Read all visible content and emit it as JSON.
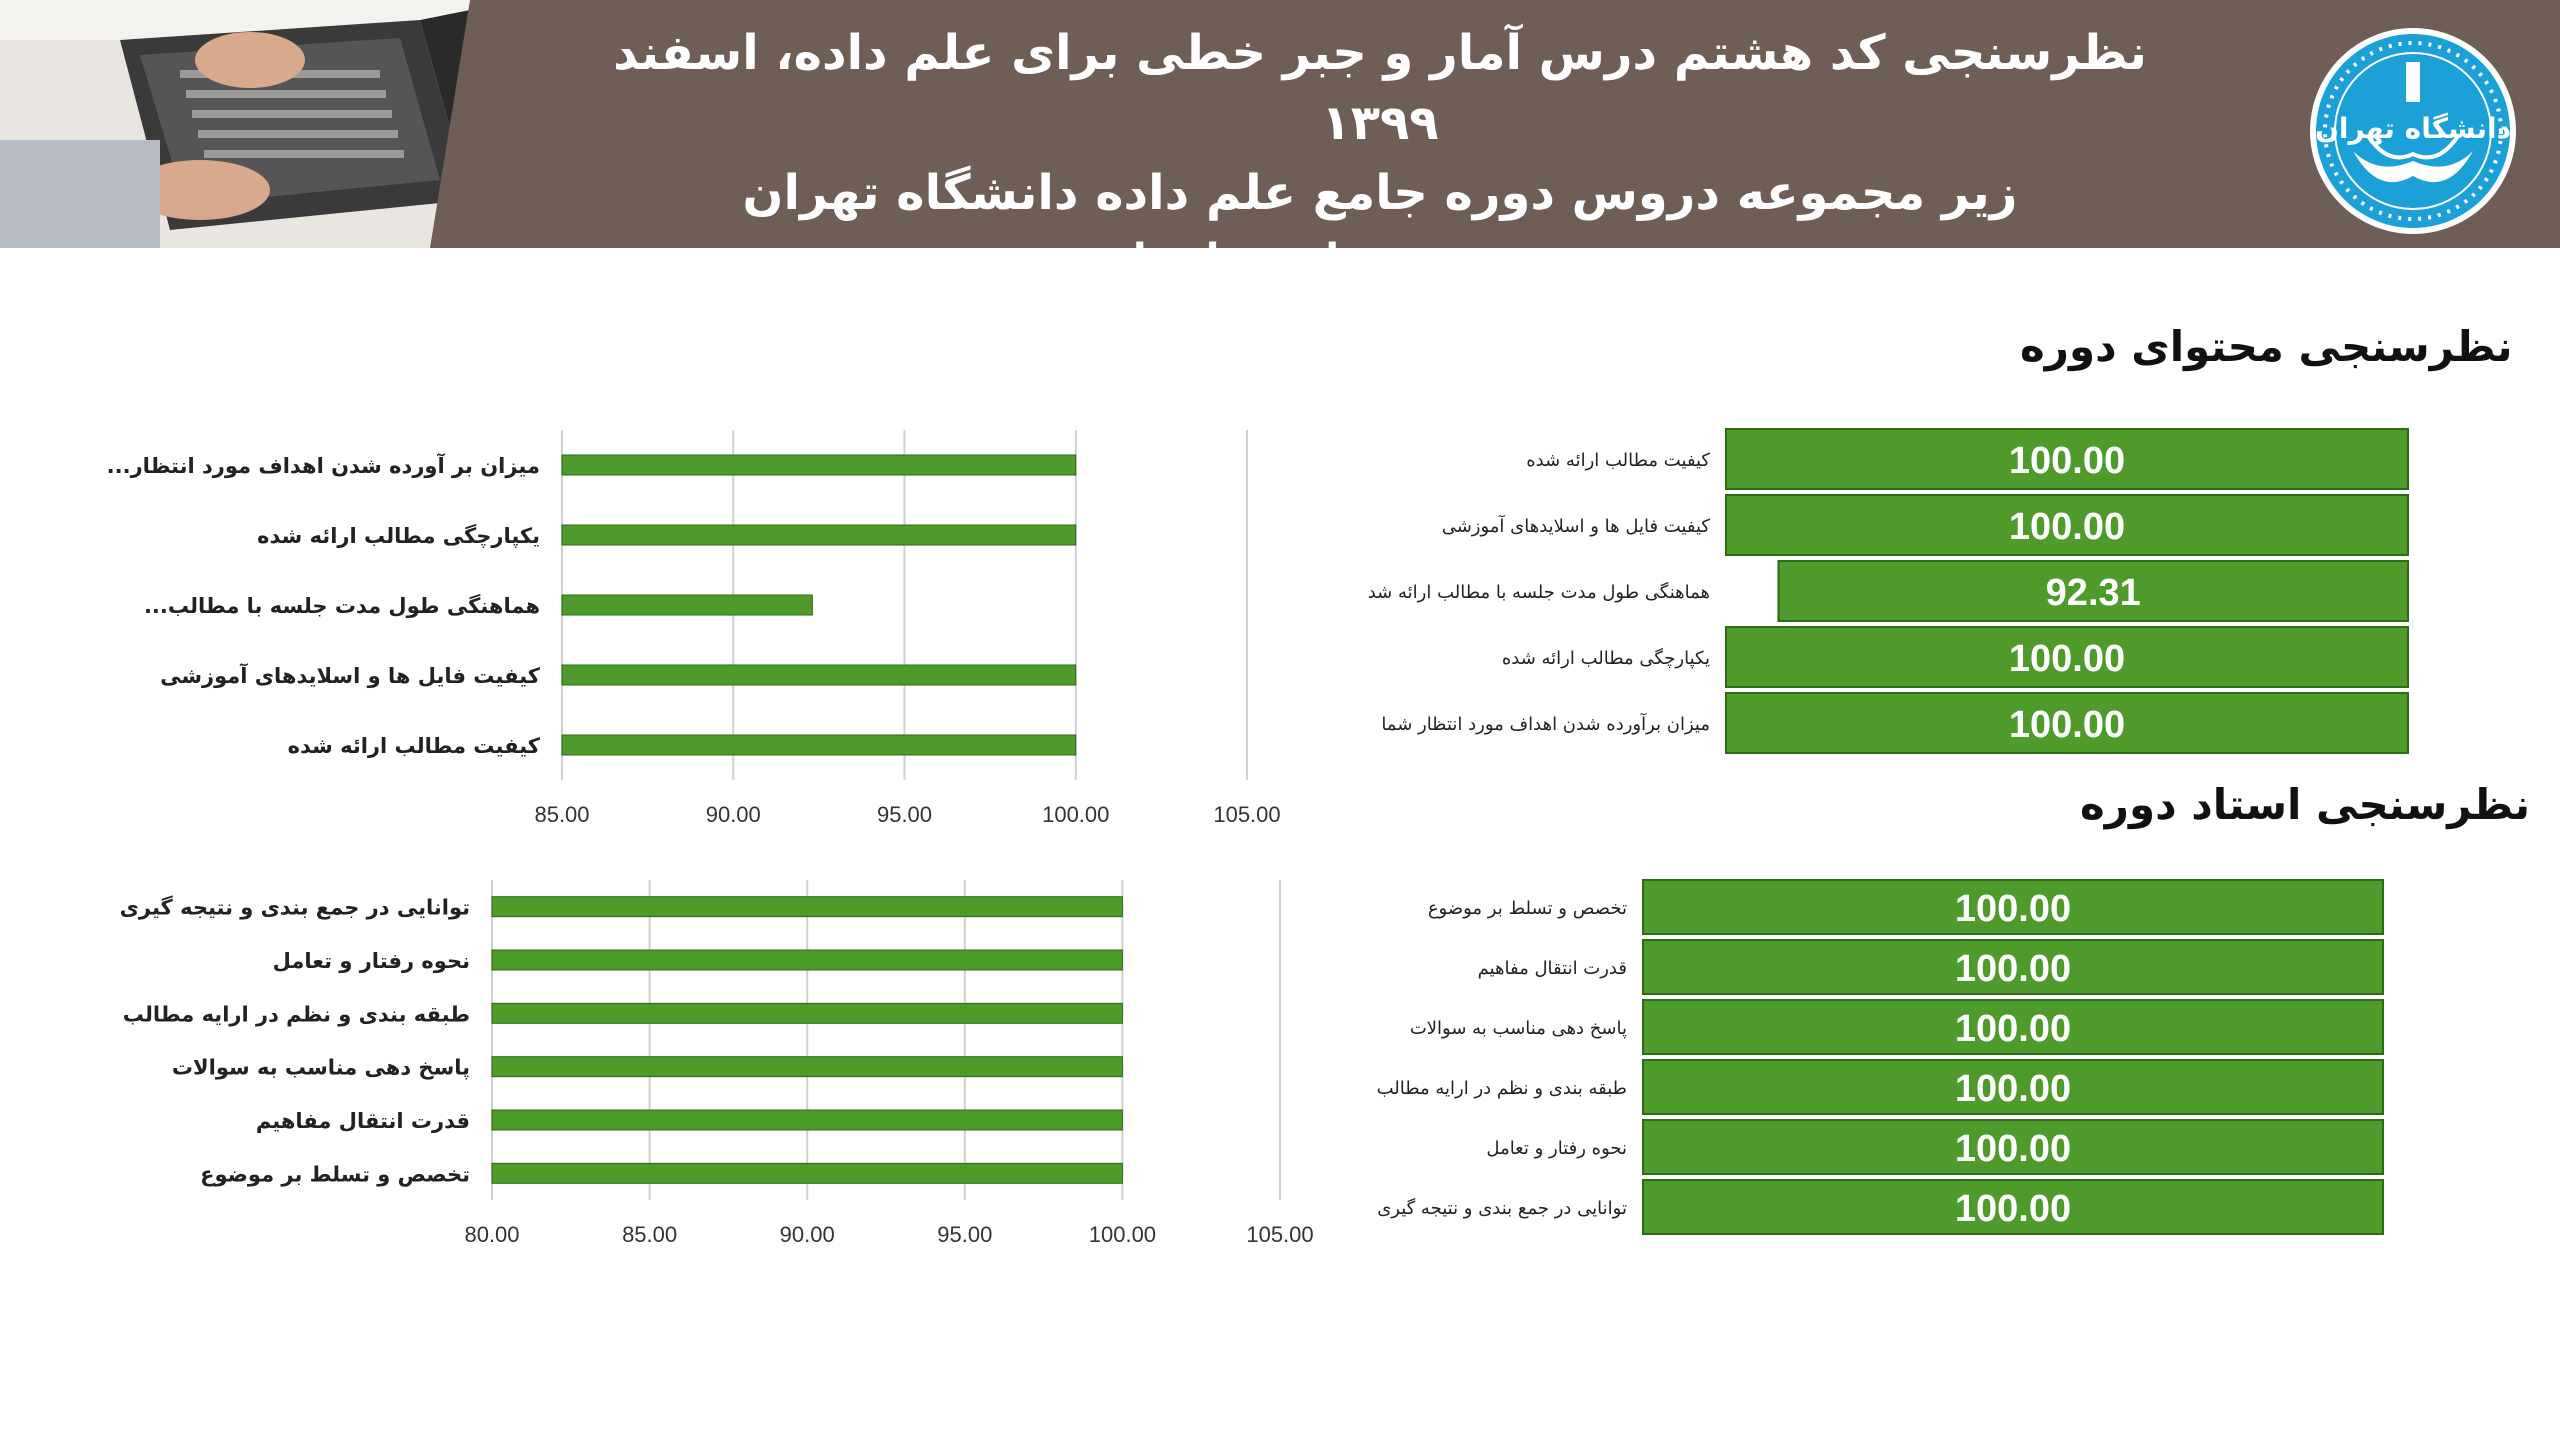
{
  "header": {
    "line1": "نظرسنجی کد هشتم درس آمار و جبر خطی برای علم داده، اسفند ۱۳۹۹",
    "line2": "زیر مجموعه دروس دوره جامع علم داده دانشگاه تهران",
    "line3": "مدرس : مهندس امیرضا تجلی"
  },
  "logo": {
    "text": "دانشگاه تهران"
  },
  "sections": {
    "content_title": "نظرسنجی محتوای دوره",
    "teacher_title": "نظرسنجی استاد دوره"
  },
  "colors": {
    "bar": "#4e9a2a",
    "bar_border": "#2f6b16",
    "header_bg": "#6e5e55",
    "grid": "#d0d0d0"
  },
  "chart_data": [
    {
      "type": "bar",
      "orientation": "horizontal",
      "categories": [
        "میزان بر آورده شدن اهداف مورد انتظار...",
        "یکپارچگی مطالب ارائه شده",
        "هماهنگی طول مدت جلسه با مطالب...",
        "کیفیت فایل ها و اسلایدهای آموزشی",
        "کیفیت مطالب ارائه شده"
      ],
      "values": [
        100,
        100,
        92.31,
        100,
        100
      ],
      "ticks": [
        "85.00",
        "90.00",
        "95.00",
        "100.00",
        "105.00"
      ],
      "xlim": [
        85,
        105
      ],
      "grid": true
    },
    {
      "type": "table",
      "categories": [
        "کیفیت مطالب ارائه شده",
        "کیفیت فایل ها و اسلایدهای آموزشی",
        "هماهنگی طول مدت جلسه با مطالب ارائه شد",
        "یکپارچگی مطالب ارائه شده",
        "میزان برآورده شدن اهداف مورد انتظار شما"
      ],
      "values": [
        "100.00",
        "100.00",
        "92.31",
        "100.00",
        "100.00"
      ]
    },
    {
      "type": "bar",
      "orientation": "horizontal",
      "categories": [
        "توانایی در جمع بندی و نتیجه گیری",
        "نحوه رفتار و تعامل",
        "طبقه بندی و نظم در ارایه مطالب",
        "پاسخ دهی مناسب به سوالات",
        "قدرت انتقال مفاهیم",
        "تخصص و تسلط بر موضوع"
      ],
      "values": [
        100,
        100,
        100,
        100,
        100,
        100
      ],
      "ticks": [
        "80.00",
        "85.00",
        "90.00",
        "95.00",
        "100.00",
        "105.00"
      ],
      "xlim": [
        80,
        105
      ],
      "grid": true
    },
    {
      "type": "table",
      "categories": [
        "تخصص و تسلط بر موضوع",
        "قدرت انتقال مفاهیم",
        "پاسخ دهی مناسب به سوالات",
        "طبقه بندی و نظم در ارایه مطالب",
        "نحوه رفتار و تعامل",
        "توانایی در جمع بندی و نتیجه گیری"
      ],
      "values": [
        "100.00",
        "100.00",
        "100.00",
        "100.00",
        "100.00",
        "100.00"
      ]
    }
  ]
}
